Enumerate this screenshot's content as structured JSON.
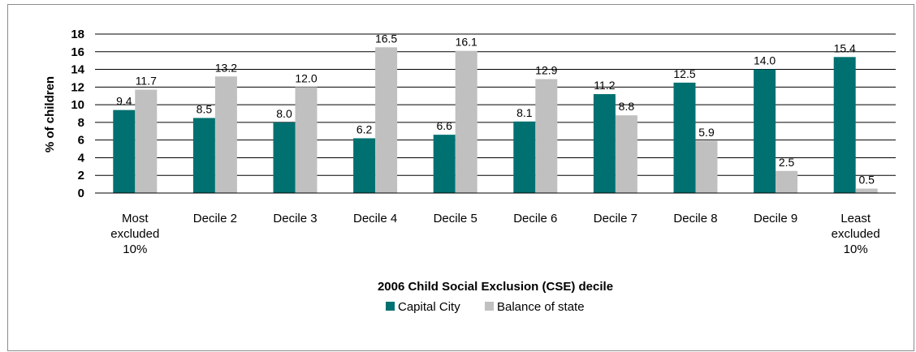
{
  "chart_data": {
    "type": "bar",
    "title": "",
    "xlabel": "2006 Child Social Exclusion (CSE) decile",
    "ylabel": "% of children",
    "ylim": [
      0,
      18
    ],
    "yticks": [
      "0",
      "2",
      "4",
      "6",
      "8",
      "10",
      "12",
      "14",
      "16",
      "18"
    ],
    "categories": [
      [
        "Most",
        "excluded",
        "10%"
      ],
      [
        "Decile 2"
      ],
      [
        "Decile 3"
      ],
      [
        "Decile 4"
      ],
      [
        "Decile 5"
      ],
      [
        "Decile 6"
      ],
      [
        "Decile 7"
      ],
      [
        "Decile 8"
      ],
      [
        "Decile 9"
      ],
      [
        "Least",
        "excluded",
        "10%"
      ]
    ],
    "series": [
      {
        "name": "Capital City",
        "color": "#007070",
        "values": [
          9.4,
          8.5,
          8.0,
          6.2,
          6.6,
          8.1,
          11.2,
          12.5,
          14.0,
          15.4
        ],
        "labels": [
          "9.4",
          "8.5",
          "8.0",
          "6.2",
          "6.6",
          "8.1",
          "11.2",
          "12.5",
          "14.0",
          "15.4"
        ]
      },
      {
        "name": "Balance of state",
        "color": "#c0c0c0",
        "values": [
          11.7,
          13.2,
          12.0,
          16.5,
          16.1,
          12.9,
          8.8,
          5.9,
          2.5,
          0.5
        ],
        "labels": [
          "11.7",
          "13.2",
          "12.0",
          "16.5",
          "16.1",
          "12.9",
          "8.8",
          "5.9",
          "2.5",
          "0.5"
        ]
      }
    ],
    "grid": true,
    "legend": "bottom"
  }
}
